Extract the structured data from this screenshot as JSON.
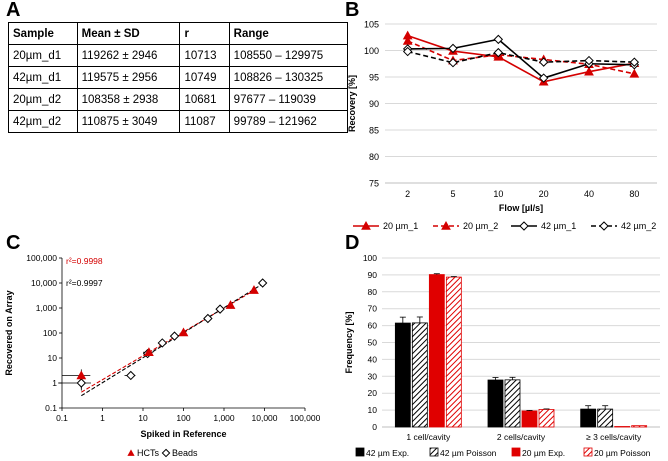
{
  "panel_labels": {
    "a": "A",
    "b": "B",
    "c": "C",
    "d": "D"
  },
  "chart_data": [
    {
      "panel": "A",
      "type": "table",
      "columns": [
        "Sample",
        "Mean ± SD",
        "r",
        "Range"
      ],
      "rows": [
        [
          "20µm_d1",
          "119262 ± 2946",
          "10713",
          "108550 – 129975"
        ],
        [
          "42µm_d1",
          "119575 ± 2956",
          "10749",
          "108826 – 130325"
        ],
        [
          "20µm_d2",
          "108358 ± 2938",
          "10681",
          "97677 – 119039"
        ],
        [
          "42µm_d2",
          "110875 ± 3049",
          "11087",
          "99789 – 121962"
        ]
      ]
    },
    {
      "panel": "B",
      "type": "line",
      "categories": [
        "2",
        "5",
        "10",
        "20",
        "40",
        "80"
      ],
      "xlabel": "Flow [µl/s]",
      "ylabel": "Recovery [%]",
      "ylim": [
        75,
        105
      ],
      "yticks": [
        75,
        80,
        85,
        90,
        95,
        100,
        105
      ],
      "series": [
        {
          "name": "20 µm_1",
          "color": "#d40000",
          "dash": false,
          "marker": "triangle-filled",
          "values": [
            102.8,
            99.9,
            98.8,
            94.1,
            96.0,
            97.6
          ]
        },
        {
          "name": "20 µm_2",
          "color": "#d40000",
          "dash": true,
          "marker": "triangle-filled",
          "values": [
            101.8,
            98.1,
            99.2,
            98.3,
            97.4,
            95.6
          ]
        },
        {
          "name": "42 µm_1",
          "color": "#000000",
          "dash": false,
          "marker": "diamond-open",
          "values": [
            100.3,
            100.4,
            102.1,
            94.8,
            97.5,
            97.3
          ]
        },
        {
          "name": "42 µm_2",
          "color": "#000000",
          "dash": true,
          "marker": "diamond-open",
          "values": [
            99.8,
            97.7,
            99.6,
            97.8,
            98.1,
            97.8
          ]
        }
      ]
    },
    {
      "panel": "C",
      "type": "scatter",
      "xscale": "log",
      "yscale": "log",
      "xlabel": "Spiked in Reference",
      "ylabel": "Recovered on Array",
      "xticks": [
        "0.1",
        "1",
        "10",
        "100",
        "1,000",
        "10,000",
        "100,000"
      ],
      "yticks": [
        "0.1",
        "1",
        "10",
        "100",
        "1,000",
        "10,000",
        "100,000"
      ],
      "annotations": [
        {
          "text": "r²=0.9998",
          "color": "#d40000"
        },
        {
          "text": "r²=0.9997",
          "color": "#000000"
        }
      ],
      "series": [
        {
          "name": "HCTs",
          "color": "#d40000",
          "marker": "triangle-filled",
          "x": [
            0.3,
            14,
            100,
            1450,
            5500
          ],
          "y": [
            2.0,
            17,
            105,
            1300,
            5200
          ],
          "xerr": [
            0.2,
            4,
            15,
            150,
            400
          ],
          "yerr": [
            1.5,
            2,
            10,
            80,
            300
          ]
        },
        {
          "name": "Beads",
          "color": "#000000",
          "marker": "diamond-open",
          "x": [
            0.3,
            5,
            13,
            30,
            60,
            400,
            800,
            9000
          ],
          "y": [
            1.0,
            2.0,
            15,
            40,
            75,
            380,
            900,
            10000
          ],
          "xerr": [
            0.22,
            1.5,
            2,
            3,
            5,
            20,
            50,
            0
          ],
          "yerr": [
            0.4,
            0.3,
            2,
            4,
            6,
            20,
            50,
            0
          ]
        }
      ],
      "fit_lines": [
        {
          "color": "#d40000",
          "x": [
            0.3,
            6000
          ],
          "y": [
            0.43,
            5500
          ]
        },
        {
          "color": "#000000",
          "x": [
            0.3,
            9000
          ],
          "y": [
            0.31,
            9200
          ]
        }
      ]
    },
    {
      "panel": "D",
      "type": "bar",
      "categories": [
        "1 cell/cavity",
        "2 cells/cavity",
        "≥ 3 cells/cavity"
      ],
      "ylabel": "Frequency [%]",
      "ylim": [
        0,
        100
      ],
      "yticks": [
        0,
        10,
        20,
        30,
        40,
        50,
        60,
        70,
        80,
        90,
        100
      ],
      "series": [
        {
          "name": "42 µm Exp.",
          "color": "#000000",
          "pattern": "solid",
          "values": [
            61.5,
            27.8,
            10.6
          ],
          "errors": [
            3.5,
            1.5,
            2.0
          ]
        },
        {
          "name": "42 µm Poisson",
          "color": "#000000",
          "pattern": "hatch",
          "values": [
            61.6,
            27.9,
            10.6
          ],
          "errors": [
            3.5,
            1.5,
            2.0
          ]
        },
        {
          "name": "20 µm Exp.",
          "color": "#e00000",
          "pattern": "solid",
          "values": [
            90.2,
            9.5,
            0.3
          ],
          "errors": [
            0.5,
            0.3,
            0
          ]
        },
        {
          "name": "20 µm Poisson",
          "color": "#e00000",
          "pattern": "hatch",
          "values": [
            88.7,
            10.4,
            0.8
          ],
          "errors": [
            0.3,
            0.3,
            0
          ]
        }
      ]
    }
  ]
}
